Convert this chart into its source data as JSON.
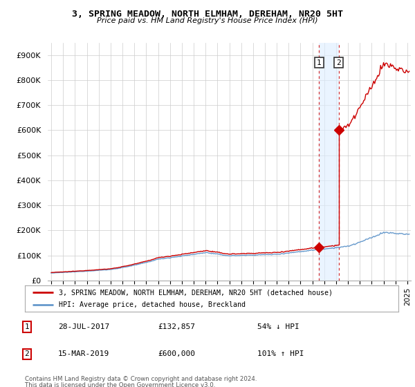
{
  "title": "3, SPRING MEADOW, NORTH ELMHAM, DEREHAM, NR20 5HT",
  "subtitle": "Price paid vs. HM Land Registry's House Price Index (HPI)",
  "property_label": "3, SPRING MEADOW, NORTH ELMHAM, DEREHAM, NR20 5HT (detached house)",
  "hpi_label": "HPI: Average price, detached house, Breckland",
  "property_color": "#cc0000",
  "hpi_color": "#6699cc",
  "vline_color": "#cc0000",
  "shade_color": "#ddeeff",
  "sale1_date_label": "28-JUL-2017",
  "sale1_price_label": "£132,857",
  "sale1_hpi_label": "54% ↓ HPI",
  "sale1_year": 2017.57,
  "sale1_price": 132857,
  "sale2_date_label": "15-MAR-2019",
  "sale2_price_label": "£600,000",
  "sale2_hpi_label": "101% ↑ HPI",
  "sale2_year": 2019.21,
  "sale2_price": 600000,
  "ylim_min": 0,
  "ylim_max": 950000,
  "yticks": [
    0,
    100000,
    200000,
    300000,
    400000,
    500000,
    600000,
    700000,
    800000,
    900000
  ],
  "ytick_labels": [
    "£0",
    "£100K",
    "£200K",
    "£300K",
    "£400K",
    "£500K",
    "£600K",
    "£700K",
    "£800K",
    "£900K"
  ],
  "footer1": "Contains HM Land Registry data © Crown copyright and database right 2024.",
  "footer2": "This data is licensed under the Open Government Licence v3.0.",
  "bg_color": "#ffffff",
  "grid_color": "#cccccc"
}
